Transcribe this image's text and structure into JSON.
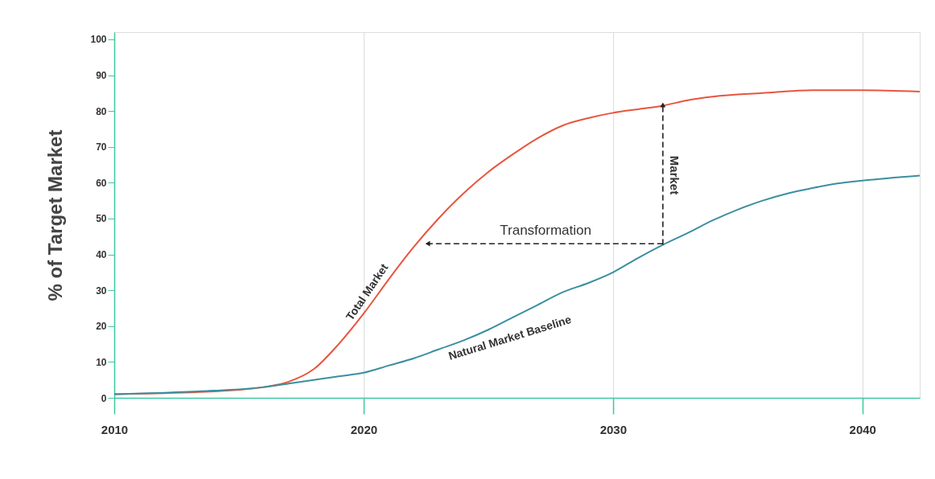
{
  "chart_data": {
    "type": "line",
    "ylabel": "% of Target Market",
    "xlim": [
      2010,
      2042.3
    ],
    "xticks": [
      2010,
      2020,
      2030,
      2040
    ],
    "ylim": [
      0,
      102
    ],
    "yticks": [
      0,
      10,
      20,
      30,
      40,
      50,
      60,
      70,
      80,
      90,
      100
    ],
    "grid": "x",
    "line_style": "solid",
    "series": [
      {
        "name": "Total Market",
        "color": "#e8553e",
        "x": [
          2010,
          2012,
          2014,
          2016,
          2017,
          2018,
          2019,
          2020,
          2021,
          2022,
          2023,
          2024,
          2025,
          2026,
          2027,
          2028,
          2029,
          2030,
          2031,
          2032,
          2033,
          2034,
          2036,
          2038,
          2040,
          2042.3
        ],
        "values": [
          1,
          1.3,
          1.8,
          3,
          4.5,
          8,
          15,
          23.5,
          33,
          42,
          50,
          57,
          63,
          68,
          72.5,
          76,
          78,
          79.5,
          80.5,
          81.5,
          83,
          84,
          85,
          85.8,
          85.8,
          85.4
        ]
      },
      {
        "name": "Natural Market Baseline",
        "color": "#3a8fa0",
        "x": [
          2010,
          2012,
          2014,
          2016,
          2017,
          2018,
          2019,
          2020,
          2021,
          2022,
          2023,
          2024,
          2025,
          2026,
          2027,
          2028,
          2029,
          2030,
          2031,
          2032,
          2033,
          2034,
          2035,
          2036,
          2037,
          2038,
          2039,
          2040,
          2042.3
        ],
        "values": [
          1,
          1.4,
          2,
          3,
          4,
          5,
          6,
          7,
          9,
          11,
          13.5,
          16,
          19,
          22.5,
          26,
          29.5,
          32,
          35,
          39,
          42.7,
          46,
          49.5,
          52.5,
          55,
          57,
          58.5,
          59.8,
          60.6,
          62
        ]
      },
      {
        "type": "line",
        "color": "#222222",
        "line_style": "dashed",
        "x": [
          2032,
          2022.6
        ],
        "values": [
          43,
          43
        ]
      },
      {
        "type": "line",
        "color": "#222222",
        "line_style": "dashed",
        "x": [
          2032,
          2032
        ],
        "values": [
          42.7,
          81.5
        ]
      }
    ],
    "annotations": [
      "Transformation",
      "Market"
    ]
  }
}
